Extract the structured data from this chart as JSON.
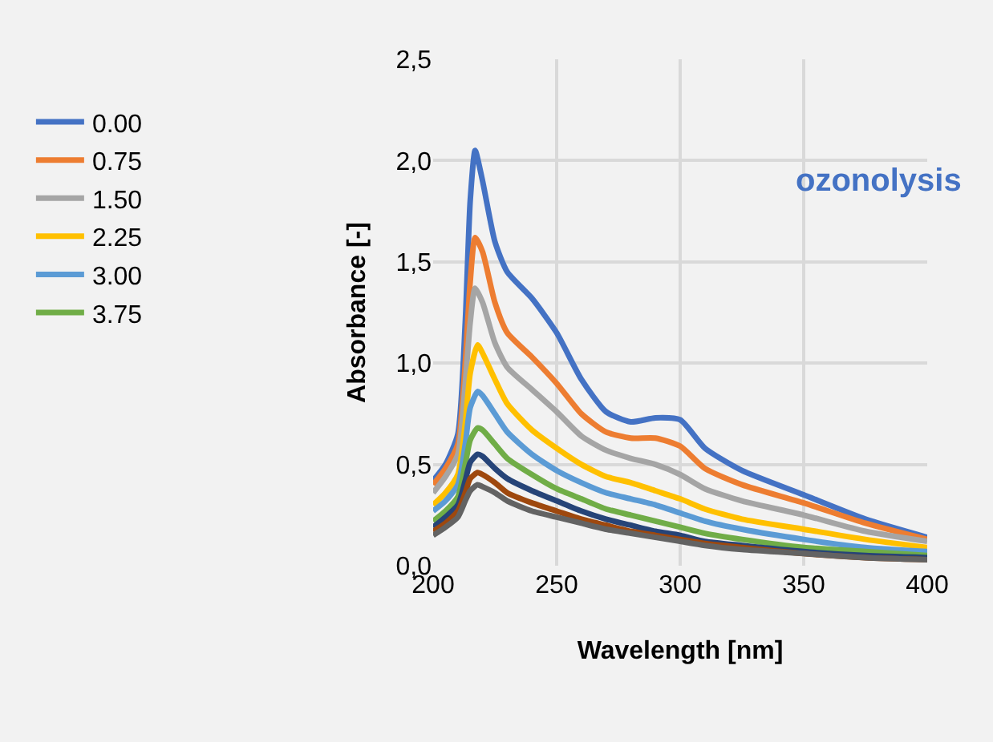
{
  "chart_data": {
    "type": "line",
    "xlabel": "Wavelength [nm]",
    "ylabel": "Absorbance [-]",
    "annotations": [
      "ozonolysis"
    ],
    "xlim": [
      200,
      400
    ],
    "xticks": [
      200,
      250,
      300,
      350,
      400
    ],
    "ylim": [
      0,
      2.5
    ],
    "yticks": [
      {
        "value": 0,
        "label": "0,0"
      },
      {
        "value": 0.5,
        "label": "0,5"
      },
      {
        "value": 1,
        "label": "1,0"
      },
      {
        "value": 1.5,
        "label": "1,5"
      },
      {
        "value": 2,
        "label": "2,0"
      },
      {
        "value": 2.5,
        "label": "2,5"
      }
    ],
    "grid": true,
    "legend": "left",
    "marker": "none",
    "line_style": "solid",
    "series": [
      {
        "name": "0.00",
        "color": "#4472c4",
        "x": [
          200,
          205,
          210,
          213,
          215,
          217,
          220,
          225,
          230,
          240,
          250,
          260,
          270,
          280,
          290,
          300,
          310,
          325,
          350,
          375,
          400
        ],
        "values": [
          0.42,
          0.5,
          0.65,
          1.2,
          1.8,
          2.05,
          1.9,
          1.6,
          1.45,
          1.32,
          1.15,
          0.92,
          0.76,
          0.71,
          0.73,
          0.72,
          0.58,
          0.47,
          0.35,
          0.23,
          0.14
        ]
      },
      {
        "name": "0.75",
        "color": "#ed7d31",
        "x": [
          200,
          205,
          210,
          213,
          215,
          217,
          220,
          225,
          230,
          240,
          250,
          260,
          270,
          280,
          290,
          300,
          310,
          325,
          350,
          375,
          400
        ],
        "values": [
          0.4,
          0.48,
          0.6,
          1.0,
          1.4,
          1.62,
          1.55,
          1.3,
          1.15,
          1.03,
          0.9,
          0.75,
          0.66,
          0.63,
          0.63,
          0.59,
          0.48,
          0.4,
          0.31,
          0.21,
          0.13
        ]
      },
      {
        "name": "1.50",
        "color": "#a5a5a5",
        "x": [
          200,
          205,
          210,
          213,
          215,
          217,
          220,
          225,
          230,
          240,
          250,
          260,
          270,
          280,
          290,
          300,
          310,
          325,
          350,
          375,
          400
        ],
        "values": [
          0.36,
          0.44,
          0.55,
          0.9,
          1.2,
          1.37,
          1.3,
          1.1,
          0.98,
          0.87,
          0.76,
          0.64,
          0.57,
          0.53,
          0.5,
          0.45,
          0.38,
          0.32,
          0.25,
          0.17,
          0.12
        ]
      },
      {
        "name": "2.25",
        "color": "#ffc000",
        "x": [
          200,
          205,
          210,
          213,
          215,
          218,
          220,
          225,
          230,
          240,
          250,
          260,
          270,
          280,
          290,
          300,
          310,
          325,
          350,
          375,
          400
        ],
        "values": [
          0.3,
          0.36,
          0.45,
          0.7,
          0.95,
          1.09,
          1.05,
          0.92,
          0.8,
          0.67,
          0.58,
          0.5,
          0.44,
          0.41,
          0.37,
          0.33,
          0.28,
          0.23,
          0.18,
          0.13,
          0.09
        ]
      },
      {
        "name": "3.00",
        "color": "#5b9bd5",
        "x": [
          200,
          205,
          210,
          213,
          215,
          218,
          220,
          225,
          230,
          240,
          250,
          260,
          270,
          280,
          290,
          300,
          310,
          325,
          350,
          375,
          400
        ],
        "values": [
          0.27,
          0.32,
          0.4,
          0.6,
          0.78,
          0.86,
          0.84,
          0.75,
          0.66,
          0.55,
          0.47,
          0.41,
          0.36,
          0.33,
          0.3,
          0.26,
          0.22,
          0.18,
          0.13,
          0.09,
          0.07
        ]
      },
      {
        "name": "3.75",
        "color": "#70ad47",
        "x": [
          200,
          205,
          210,
          213,
          215,
          218,
          220,
          225,
          230,
          240,
          250,
          260,
          270,
          280,
          290,
          300,
          310,
          325,
          350,
          375,
          400
        ],
        "values": [
          0.22,
          0.27,
          0.34,
          0.5,
          0.62,
          0.68,
          0.67,
          0.6,
          0.53,
          0.45,
          0.38,
          0.33,
          0.28,
          0.25,
          0.22,
          0.19,
          0.16,
          0.13,
          0.09,
          0.07,
          0.05
        ]
      },
      {
        "color": "#264478",
        "x": [
          200,
          205,
          210,
          213,
          215,
          218,
          220,
          225,
          230,
          240,
          250,
          260,
          270,
          280,
          290,
          300,
          310,
          325,
          350,
          375,
          400
        ],
        "values": [
          0.19,
          0.24,
          0.3,
          0.42,
          0.51,
          0.55,
          0.54,
          0.48,
          0.43,
          0.37,
          0.32,
          0.27,
          0.23,
          0.2,
          0.17,
          0.15,
          0.12,
          0.1,
          0.07,
          0.05,
          0.04
        ]
      },
      {
        "color": "#9e480e",
        "x": [
          200,
          205,
          210,
          213,
          215,
          218,
          220,
          225,
          230,
          240,
          250,
          260,
          270,
          280,
          290,
          300,
          310,
          325,
          350,
          375,
          400
        ],
        "values": [
          0.17,
          0.21,
          0.27,
          0.36,
          0.43,
          0.46,
          0.45,
          0.41,
          0.36,
          0.31,
          0.27,
          0.23,
          0.2,
          0.17,
          0.15,
          0.13,
          0.11,
          0.09,
          0.06,
          0.04,
          0.03
        ]
      },
      {
        "color": "#636363",
        "x": [
          200,
          205,
          210,
          213,
          215,
          218,
          220,
          225,
          230,
          240,
          250,
          260,
          270,
          280,
          290,
          300,
          310,
          325,
          350,
          375,
          400
        ],
        "values": [
          0.15,
          0.19,
          0.24,
          0.32,
          0.37,
          0.4,
          0.39,
          0.36,
          0.32,
          0.27,
          0.24,
          0.21,
          0.18,
          0.16,
          0.14,
          0.12,
          0.1,
          0.08,
          0.06,
          0.04,
          0.03
        ]
      }
    ]
  }
}
